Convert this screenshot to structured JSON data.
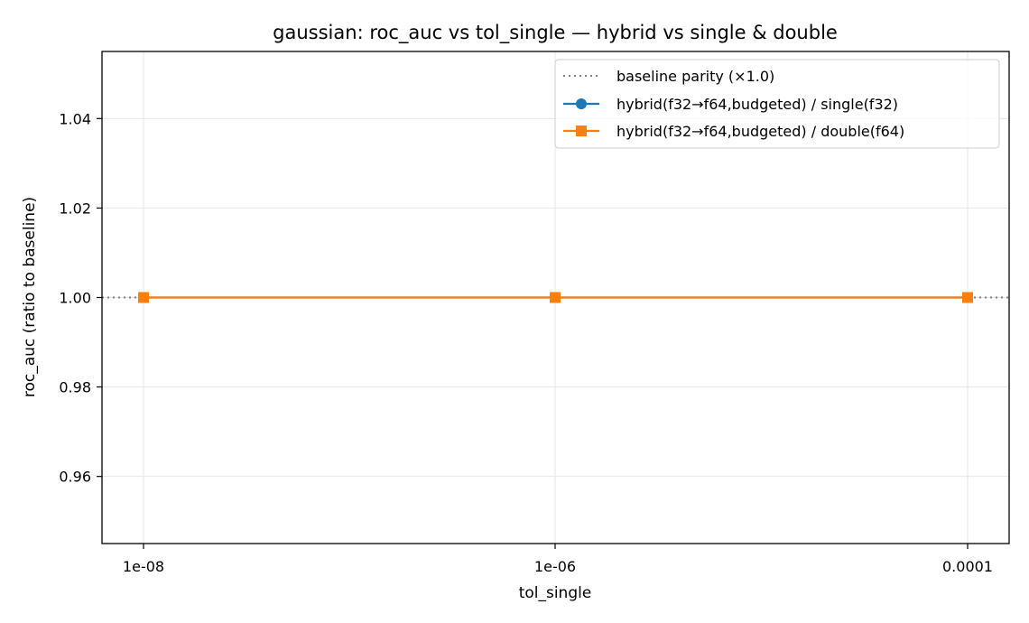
{
  "chart_data": {
    "type": "line",
    "title": "gaussian: roc_auc vs tol_single — hybrid vs single & double",
    "xlabel": "tol_single",
    "ylabel": "roc_auc (ratio to baseline)",
    "x_scale": "log",
    "categories": [
      "1e-08",
      "1e-06",
      "0.0001"
    ],
    "x_values": [
      1e-08,
      1e-06,
      0.0001
    ],
    "ylim": [
      0.945,
      1.055
    ],
    "y_ticks": [
      "0.96",
      "0.98",
      "1.00",
      "1.02",
      "1.04"
    ],
    "y_tick_values": [
      0.96,
      0.98,
      1.0,
      1.02,
      1.04
    ],
    "grid": true,
    "legend_position": "top-right",
    "reference_line": {
      "name": "baseline parity (×1.0)",
      "value": 1.0,
      "color": "#808080",
      "style": "dotted"
    },
    "series": [
      {
        "name": "hybrid(f32→f64,budgeted) / single(f32)",
        "values": [
          1.0,
          1.0,
          1.0
        ],
        "color": "#1f77b4",
        "marker": "circle"
      },
      {
        "name": "hybrid(f32→f64,budgeted) / double(f64)",
        "values": [
          1.0,
          1.0,
          1.0
        ],
        "color": "#ff7f0e",
        "marker": "square"
      }
    ]
  }
}
